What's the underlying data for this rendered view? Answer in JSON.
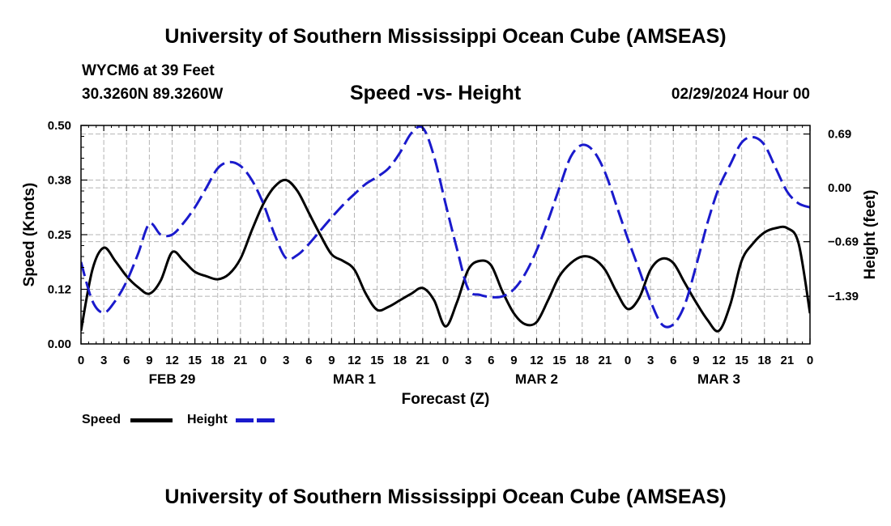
{
  "header": {
    "title": "University of Southern Mississippi Ocean Cube (AMSEAS)",
    "station": "WYCM6 at 39 Feet",
    "coords": "30.3260N  89.3260W",
    "chart_title": "Speed -vs- Height",
    "run": "02/29/2024 Hour 00"
  },
  "footer": {
    "title": "University of Southern Mississippi Ocean Cube (AMSEAS)"
  },
  "legend": {
    "speed_label": "Speed",
    "height_label": "Height"
  },
  "colors": {
    "speed": "#000000",
    "height": "#1a1acc",
    "grid": "#b4b4b4"
  },
  "chart_data": {
    "type": "line",
    "title": "Speed -vs- Height",
    "xlabel": "Forecast (Z)",
    "ylabel": "Speed (Knots)",
    "y2label": "Height (feet)",
    "xlim": [
      0,
      96
    ],
    "ylim": [
      0,
      0.5
    ],
    "y2lim": [
      -2.0,
      0.8
    ],
    "grid": true,
    "x_tick_labels": [
      "0",
      "3",
      "6",
      "9",
      "12",
      "15",
      "18",
      "21",
      "0",
      "3",
      "6",
      "9",
      "12",
      "15",
      "18",
      "21",
      "0",
      "3",
      "6",
      "9",
      "12",
      "15",
      "18",
      "21",
      "0",
      "3",
      "6",
      "9",
      "12",
      "15",
      "18",
      "21",
      "0"
    ],
    "y_ticks": [
      0.0,
      0.125,
      0.25,
      0.375,
      0.5
    ],
    "y_tick_labels": [
      "0.00",
      "0.12",
      "0.25",
      "0.38",
      "0.50"
    ],
    "y2_ticks": [
      0.69,
      0.0,
      -0.69,
      -1.39
    ],
    "y2_tick_labels": [
      "0.69",
      "0.00",
      "−0.69",
      "−1.39"
    ],
    "day_labels": [
      {
        "label": "FEB 29",
        "x": 12
      },
      {
        "label": "MAR 1",
        "x": 36
      },
      {
        "label": "MAR 2",
        "x": 60
      },
      {
        "label": "MAR 3",
        "x": 84
      }
    ],
    "series": [
      {
        "name": "Speed",
        "axis": "left",
        "style": "solid",
        "x": [
          0,
          1.5,
          3,
          4.5,
          6,
          7.5,
          9,
          10.5,
          12,
          13.5,
          15,
          16.5,
          18,
          19.5,
          21,
          22.5,
          24,
          25.5,
          27,
          28.5,
          30,
          31.5,
          33,
          34.5,
          36,
          37.5,
          39,
          40.5,
          42,
          43.5,
          45,
          46.5,
          48,
          49.5,
          51,
          52.5,
          54,
          55.5,
          57,
          58.5,
          60,
          61.5,
          63,
          64.5,
          66,
          67.5,
          69,
          70.5,
          72,
          73.5,
          75,
          76.5,
          78,
          79.5,
          81,
          82.5,
          84,
          85.5,
          87,
          88.5,
          90,
          91.5,
          93,
          94.5,
          96
        ],
        "values": [
          0.03,
          0.17,
          0.22,
          0.19,
          0.155,
          0.13,
          0.115,
          0.145,
          0.21,
          0.19,
          0.165,
          0.155,
          0.148,
          0.16,
          0.195,
          0.26,
          0.32,
          0.36,
          0.375,
          0.35,
          0.3,
          0.25,
          0.205,
          0.19,
          0.17,
          0.115,
          0.078,
          0.085,
          0.1,
          0.115,
          0.128,
          0.1,
          0.04,
          0.095,
          0.17,
          0.19,
          0.18,
          0.12,
          0.07,
          0.045,
          0.05,
          0.1,
          0.155,
          0.185,
          0.2,
          0.195,
          0.17,
          0.12,
          0.08,
          0.105,
          0.17,
          0.195,
          0.185,
          0.14,
          0.095,
          0.055,
          0.03,
          0.09,
          0.19,
          0.23,
          0.255,
          0.265,
          0.265,
          0.23,
          0.07
        ]
      },
      {
        "name": "Height",
        "axis": "right",
        "style": "dashed",
        "x": [
          0,
          1.5,
          3,
          4.5,
          6,
          7.5,
          9,
          10.5,
          12,
          13.5,
          15,
          16.5,
          18,
          19.5,
          21,
          22.5,
          24,
          25.5,
          27,
          28.5,
          30,
          31.5,
          33,
          34.5,
          36,
          37.5,
          39,
          40.5,
          42,
          43.5,
          45,
          46.5,
          48,
          49.5,
          51,
          52.5,
          54,
          55.5,
          57,
          58.5,
          60,
          61.5,
          63,
          64.5,
          66,
          67.5,
          69,
          70.5,
          72,
          73.5,
          75,
          76.5,
          78,
          79.5,
          81,
          82.5,
          84,
          85.5,
          87,
          88.5,
          90,
          91.5,
          93,
          94.5,
          96
        ],
        "values": [
          -0.95,
          -1.45,
          -1.6,
          -1.45,
          -1.2,
          -0.85,
          -0.46,
          -0.6,
          -0.6,
          -0.45,
          -0.25,
          0.0,
          0.25,
          0.33,
          0.28,
          0.1,
          -0.2,
          -0.6,
          -0.9,
          -0.86,
          -0.72,
          -0.55,
          -0.38,
          -0.22,
          -0.08,
          0.05,
          0.14,
          0.25,
          0.45,
          0.7,
          0.77,
          0.4,
          -0.2,
          -0.78,
          -1.3,
          -1.37,
          -1.4,
          -1.39,
          -1.3,
          -1.1,
          -0.8,
          -0.42,
          0.0,
          0.4,
          0.55,
          0.47,
          0.2,
          -0.22,
          -0.65,
          -1.05,
          -1.45,
          -1.75,
          -1.75,
          -1.5,
          -1.0,
          -0.45,
          0.0,
          0.3,
          0.58,
          0.65,
          0.55,
          0.25,
          -0.05,
          -0.2,
          -0.25
        ]
      }
    ]
  }
}
